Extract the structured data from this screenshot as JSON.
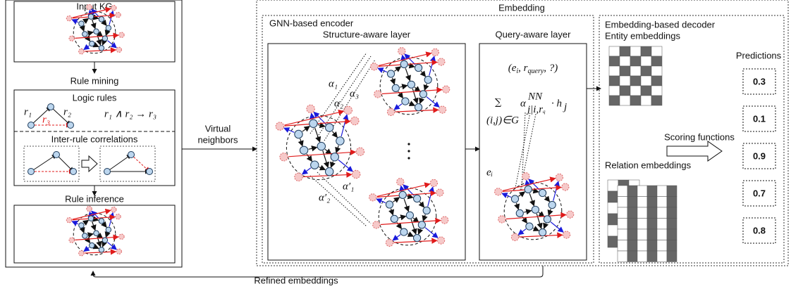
{
  "left_panel": {
    "input_title": "Input KG",
    "rule_mining": "Rule mining",
    "logic_rules": {
      "title": "Logic rules",
      "r1": "r₁",
      "r3": "r₃",
      "r2": "r₂",
      "formula": "r₁ ∧ r₂ → r₃"
    },
    "inter_rule": "Inter-rule correlations",
    "rule_inference": "Rule inference"
  },
  "virtual_neighbors": [
    "Virtual",
    "neighbors"
  ],
  "embedding": {
    "title": "Embedding",
    "encoder": {
      "title": "GNN-based encoder",
      "structure_layer": {
        "title": "Structure-aware layer",
        "alphas": [
          "α₁",
          "α₂",
          "α₃",
          "α′₁",
          "α′₂"
        ]
      },
      "query_layer": {
        "title": "Query-aware layer",
        "query_parts": [
          "(e",
          "i",
          ", r",
          "query",
          ", ?)"
        ],
        "sum_parts": [
          "∑",
          "(i,j)∈G",
          "α",
          "NN",
          "j|i,r",
          "q",
          "· h",
          "j"
        ],
        "node_label": "eᵢ"
      }
    },
    "decoder": {
      "title": "Embedding-based decoder",
      "entity": "Entity embeddings",
      "predictions_title": "Predictions",
      "predictions": [
        0.3,
        0.1,
        0.9,
        0.7,
        0.8
      ],
      "scoring": "Scoring functions",
      "relation": "Relation embeddings"
    }
  },
  "refined": "Refined embeddings"
}
